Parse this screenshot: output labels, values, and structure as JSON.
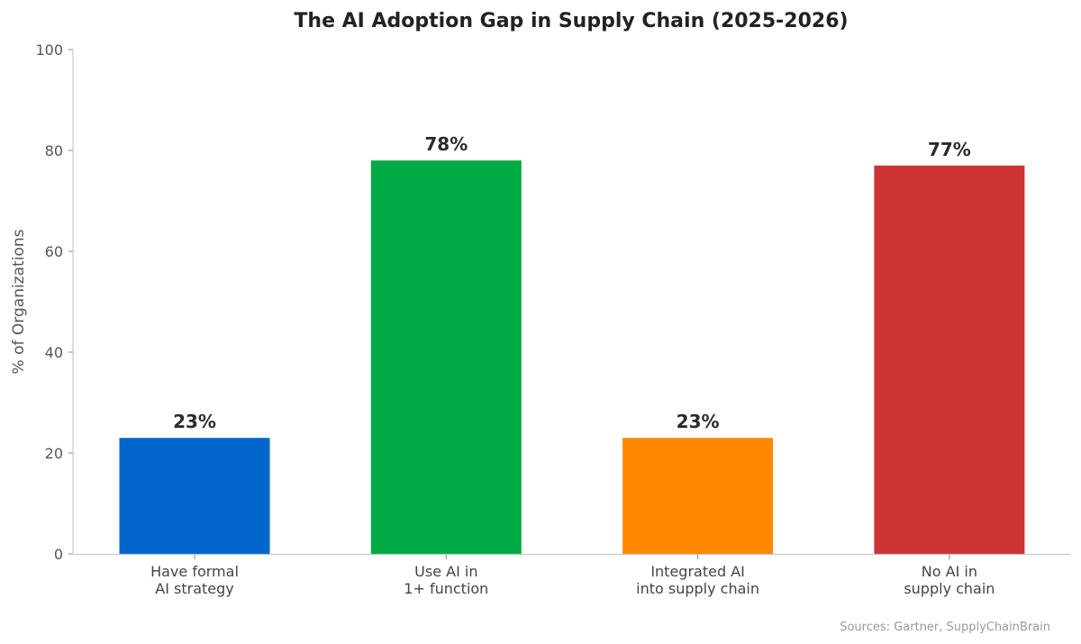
{
  "chart_data": {
    "type": "bar",
    "title": "The AI Adoption Gap in Supply Chain (2025-2026)",
    "xlabel": "",
    "ylabel": "% of Organizations",
    "ylim": [
      0,
      100
    ],
    "yticks": [
      0,
      20,
      40,
      60,
      80,
      100
    ],
    "grid": false,
    "categories": [
      [
        "Have formal",
        "AI strategy"
      ],
      [
        "Use AI in",
        "1+ function"
      ],
      [
        "Integrated AI",
        "into supply chain"
      ],
      [
        "No AI in",
        "supply chain"
      ]
    ],
    "values": [
      23,
      78,
      23,
      77
    ],
    "data_labels": [
      "23%",
      "78%",
      "23%",
      "77%"
    ],
    "colors": [
      "#0066CC",
      "#00AA44",
      "#FF8800",
      "#CC3333"
    ],
    "source": "Sources: Gartner, SupplyChainBrain"
  }
}
